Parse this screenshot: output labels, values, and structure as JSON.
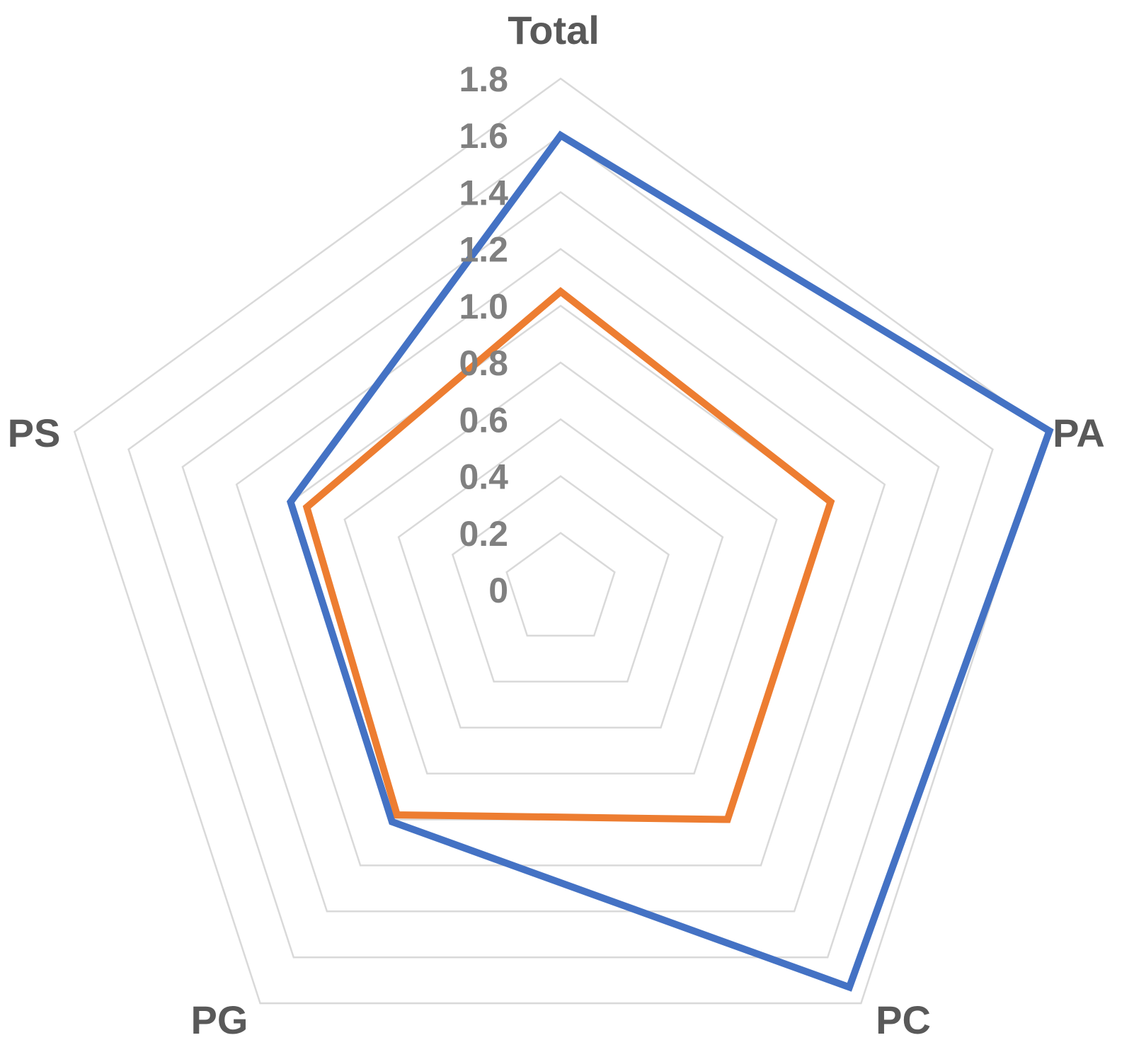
{
  "chart_data": {
    "type": "radar",
    "categories": [
      "Total",
      "PA",
      "PC",
      "PG",
      "PS"
    ],
    "series": [
      {
        "values": [
          1.6,
          1.81,
          1.73,
          1.01,
          1.0
        ],
        "color": "#4472c4"
      },
      {
        "values": [
          1.05,
          1.0,
          1.0,
          0.98,
          0.94
        ],
        "color": "#ed7d31"
      }
    ],
    "tick_labels": [
      "0",
      "0.2",
      "0.4",
      "0.6",
      "0.8",
      "1.0",
      "1.2",
      "1.4",
      "1.6",
      "1.8"
    ],
    "axis_range": [
      0,
      1.8
    ],
    "grid": true,
    "legend": "none"
  }
}
